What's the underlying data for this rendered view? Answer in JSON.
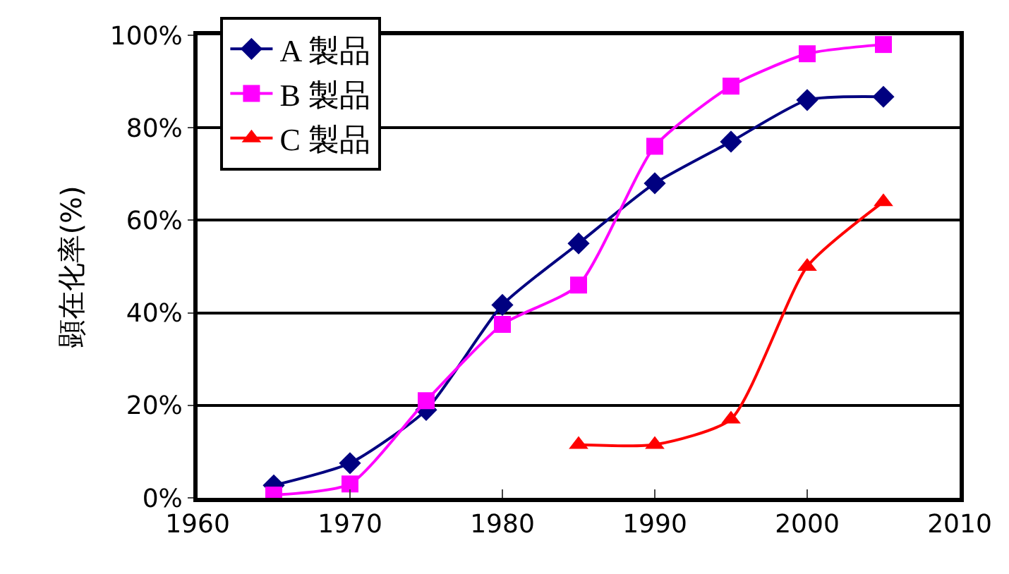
{
  "chart_data": {
    "type": "line",
    "ylabel": "顕在化率(%)",
    "xlim": [
      1960,
      2010
    ],
    "xticks": [
      1960,
      1970,
      1980,
      1990,
      2000,
      2010
    ],
    "ylim": [
      0,
      100
    ],
    "yticks": [
      {
        "value": 0,
        "label": "0%"
      },
      {
        "value": 20,
        "label": "20%"
      },
      {
        "value": 40,
        "label": "40%"
      },
      {
        "value": 60,
        "label": "60%"
      },
      {
        "value": 80,
        "label": "80%"
      },
      {
        "value": 100,
        "label": "100%"
      }
    ],
    "grid": "y",
    "legend": "top left",
    "series": [
      {
        "name": "A 製品",
        "color": "#000080",
        "marker": "diamond",
        "x": [
          1965,
          1970,
          1975,
          1980,
          1985,
          1990,
          1995,
          2000,
          2005
        ],
        "values": [
          2.7,
          7.5,
          19,
          41.7,
          55,
          68,
          77,
          86,
          86.7
        ]
      },
      {
        "name": "B 製品",
        "color": "#ff00ff",
        "marker": "square",
        "x": [
          1965,
          1970,
          1975,
          1980,
          1985,
          1990,
          1995,
          2000,
          2005
        ],
        "values": [
          0.6,
          3,
          21,
          37.5,
          46,
          76,
          89,
          96,
          98
        ]
      },
      {
        "name": "C 製品",
        "color": "#ff0000",
        "marker": "triangle",
        "x": [
          1985,
          1990,
          1995,
          2000,
          2005
        ],
        "values": [
          11.5,
          11.5,
          17,
          50,
          64
        ]
      }
    ]
  }
}
